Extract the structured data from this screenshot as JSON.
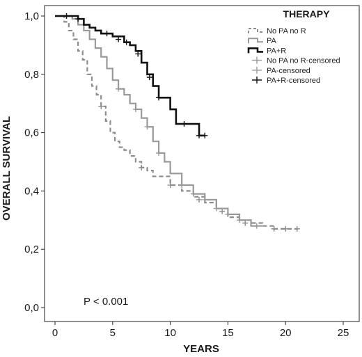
{
  "chart_data": {
    "type": "line",
    "xlabel": "YEARS",
    "ylabel": "OVERALL SURVIVAL",
    "xlim": [
      0,
      25
    ],
    "ylim": [
      0,
      1
    ],
    "x_ticks": [
      "0",
      "5",
      "10",
      "15",
      "20",
      "25"
    ],
    "y_ticks": [
      "0,0",
      "0,2",
      "0,4",
      "0,6",
      "0,8",
      "1,0"
    ],
    "grid": false,
    "legend": {
      "title": "THERAPY",
      "placement": "top-right",
      "entries": [
        "No PA no R",
        "PA",
        "PA+R",
        "No PA no R-censored",
        "PA-censored",
        "PA+R-censored"
      ]
    },
    "annotation": "P < 0.001",
    "series": [
      {
        "name": "No PA no R",
        "style": "dashed",
        "color": "#8c8c8c",
        "x": [
          0,
          0.8,
          1.2,
          1.6,
          2.0,
          2.4,
          2.8,
          3.2,
          3.6,
          4.0,
          4.4,
          4.8,
          5.2,
          5.6,
          6.0,
          6.5,
          7.0,
          7.5,
          8.0,
          8.5,
          9.0,
          9.5,
          10.0,
          11.0,
          12.0,
          13.0,
          14.0,
          15.0,
          16.0,
          17.0,
          18.0,
          19.0,
          20.0,
          21.0
        ],
        "y": [
          1.0,
          0.98,
          0.95,
          0.92,
          0.88,
          0.85,
          0.8,
          0.76,
          0.73,
          0.69,
          0.64,
          0.6,
          0.57,
          0.55,
          0.54,
          0.52,
          0.5,
          0.48,
          0.47,
          0.45,
          0.45,
          0.45,
          0.42,
          0.4,
          0.38,
          0.36,
          0.34,
          0.31,
          0.3,
          0.29,
          0.28,
          0.27,
          0.27,
          0.27
        ],
        "censored_x": [
          4.0,
          7.5,
          10.0,
          12.5,
          14.5,
          16.5,
          19.0,
          20.0,
          21.0
        ],
        "censored_y": [
          0.69,
          0.48,
          0.42,
          0.37,
          0.33,
          0.29,
          0.27,
          0.27,
          0.27
        ]
      },
      {
        "name": "PA",
        "style": "solid",
        "color": "#999999",
        "x": [
          0,
          1.5,
          2.0,
          2.5,
          3.0,
          3.5,
          4.0,
          4.5,
          5.0,
          5.5,
          6.0,
          6.5,
          7.0,
          7.5,
          8.0,
          8.5,
          9.0,
          9.5,
          10.0,
          11.0,
          12.0,
          13.0,
          14.0,
          15.0,
          16.0,
          17.0,
          18.0
        ],
        "y": [
          1.0,
          0.99,
          0.97,
          0.95,
          0.92,
          0.89,
          0.86,
          0.82,
          0.78,
          0.75,
          0.73,
          0.7,
          0.68,
          0.65,
          0.62,
          0.57,
          0.53,
          0.5,
          0.46,
          0.42,
          0.39,
          0.37,
          0.34,
          0.32,
          0.3,
          0.28,
          0.28
        ],
        "censored_x": [
          5.5,
          7.0,
          8.0,
          9.0,
          11.0,
          12.0,
          13.0,
          14.0,
          15.0,
          16.0,
          17.5
        ],
        "censored_y": [
          0.75,
          0.68,
          0.62,
          0.53,
          0.42,
          0.39,
          0.37,
          0.34,
          0.32,
          0.3,
          0.28
        ]
      },
      {
        "name": "PA+R",
        "style": "solid",
        "color": "#111111",
        "x": [
          0,
          2.0,
          2.5,
          3.0,
          3.5,
          4.0,
          5.0,
          6.0,
          6.5,
          7.0,
          7.5,
          8.0,
          8.5,
          9.0,
          9.5,
          10.0,
          10.5,
          11.0,
          12.0,
          12.5,
          13.0
        ],
        "y": [
          1.0,
          0.99,
          0.97,
          0.96,
          0.95,
          0.94,
          0.93,
          0.91,
          0.9,
          0.88,
          0.84,
          0.8,
          0.76,
          0.72,
          0.72,
          0.68,
          0.63,
          0.63,
          0.63,
          0.59,
          0.59
        ],
        "censored_x": [
          1.0,
          2.0,
          4.5,
          5.5,
          6.2,
          7.2,
          8.2,
          9.0,
          11.2,
          12.5,
          13.0
        ],
        "censored_y": [
          1.0,
          0.99,
          0.94,
          0.92,
          0.91,
          0.87,
          0.79,
          0.72,
          0.63,
          0.59,
          0.59
        ]
      }
    ]
  }
}
